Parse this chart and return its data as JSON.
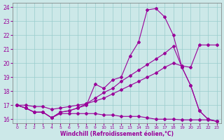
{
  "xlabel": "Windchill (Refroidissement éolien,°C)",
  "background_color": "#cce8e8",
  "line_color": "#990099",
  "xlim": [
    -0.5,
    23.5
  ],
  "ylim": [
    15.7,
    24.3
  ],
  "xticks": [
    0,
    1,
    2,
    3,
    4,
    5,
    6,
    7,
    8,
    9,
    10,
    11,
    12,
    13,
    14,
    15,
    16,
    17,
    18,
    19,
    20,
    21,
    22,
    23
  ],
  "yticks": [
    16,
    17,
    18,
    19,
    20,
    21,
    22,
    23,
    24
  ],
  "series": [
    {
      "x": [
        0,
        1,
        2,
        3,
        4,
        5,
        6,
        7,
        8,
        9,
        10,
        11,
        12,
        13,
        14,
        15,
        16,
        17,
        18,
        19,
        20,
        21,
        22,
        23
      ],
      "y": [
        17.0,
        16.8,
        16.5,
        16.5,
        16.1,
        16.4,
        16.4,
        16.4,
        16.4,
        16.4,
        16.3,
        16.3,
        16.2,
        16.2,
        16.2,
        16.1,
        16.0,
        16.0,
        16.0,
        15.95,
        15.95,
        15.95,
        15.95,
        15.85
      ]
    },
    {
      "x": [
        0,
        1,
        2,
        3,
        4,
        5,
        6,
        7,
        8,
        9,
        10,
        11,
        12,
        13,
        14,
        15,
        16,
        17,
        18,
        19,
        20,
        21,
        22,
        23
      ],
      "y": [
        17.0,
        17.0,
        16.9,
        16.9,
        16.7,
        16.8,
        16.9,
        17.0,
        17.1,
        17.3,
        17.5,
        17.8,
        18.1,
        18.4,
        18.7,
        19.0,
        19.3,
        19.7,
        20.0,
        19.8,
        19.7,
        21.3,
        21.3,
        21.3
      ]
    },
    {
      "x": [
        0,
        1,
        2,
        3,
        4,
        5,
        6,
        7,
        8,
        9,
        10,
        11,
        12,
        13,
        14,
        15,
        16,
        17,
        18,
        19,
        20,
        21,
        22,
        23
      ],
      "y": [
        17.0,
        16.8,
        16.5,
        16.5,
        16.1,
        16.5,
        16.6,
        16.8,
        17.1,
        17.5,
        17.9,
        18.2,
        18.7,
        19.1,
        19.5,
        19.9,
        20.3,
        20.7,
        21.2,
        19.7,
        18.4,
        16.6,
        16.0,
        15.85
      ]
    },
    {
      "x": [
        0,
        1,
        2,
        3,
        4,
        5,
        6,
        7,
        8,
        9,
        10,
        11,
        12,
        13,
        14,
        15,
        16,
        17,
        18,
        19,
        20,
        21,
        22,
        23
      ],
      "y": [
        17.0,
        16.8,
        16.5,
        16.5,
        16.1,
        16.5,
        16.6,
        16.8,
        17.0,
        18.5,
        18.2,
        18.8,
        19.0,
        20.5,
        21.5,
        23.8,
        23.9,
        23.3,
        22.0,
        19.7,
        18.4,
        16.6,
        16.0,
        15.85
      ]
    }
  ]
}
